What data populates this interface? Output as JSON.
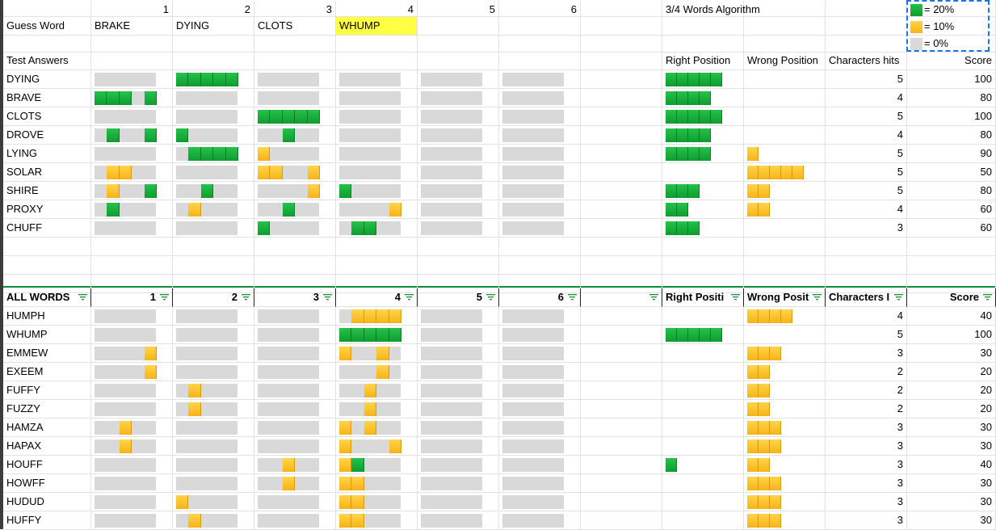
{
  "colors": {
    "green": "#1db43f",
    "yellow": "#fbbf2a",
    "gray": "#d9d9d9",
    "highlight": "#ffff44"
  },
  "header": {
    "col_numbers": [
      "1",
      "2",
      "3",
      "4",
      "5",
      "6"
    ],
    "algorithm_label": "3/4 Words Algorithm",
    "guess_label": "Guess Word",
    "guesses": [
      "BRAKE",
      "DYING",
      "CLOTS",
      "WHUMP"
    ],
    "test_answers_label": "Test Answers",
    "right_position": "Right Position",
    "wrong_position": "Wrong Position",
    "characters_hits": "Characters hits",
    "score": "Score"
  },
  "legend": [
    {
      "color": "green",
      "label": "= 20%"
    },
    {
      "color": "yellow",
      "label": "= 10%"
    },
    {
      "color": "gray",
      "label": "= 0%"
    }
  ],
  "test_rows": [
    {
      "word": "DYING",
      "marks": [
        "-----",
        "GGGGG",
        "-----",
        "-----",
        "-----",
        "-----"
      ],
      "right": 5,
      "wrong": 0,
      "hits": "5",
      "score": "100"
    },
    {
      "word": "BRAVE",
      "marks": [
        "GGG-G",
        "-----",
        "-----",
        "-----",
        "-----",
        "-----"
      ],
      "right": 4,
      "wrong": 0,
      "hits": "4",
      "score": "80"
    },
    {
      "word": "CLOTS",
      "marks": [
        "-----",
        "-----",
        "GGGGG",
        "-----",
        "-----",
        "-----"
      ],
      "right": 5,
      "wrong": 0,
      "hits": "5",
      "score": "100"
    },
    {
      "word": "DROVE",
      "marks": [
        "-G--G",
        "G----",
        "--G--",
        "-----",
        "-----",
        "-----"
      ],
      "right": 4,
      "wrong": 0,
      "hits": "4",
      "score": "80"
    },
    {
      "word": "LYING",
      "marks": [
        "-----",
        "-GGGG",
        "Y----",
        "-----",
        "-----",
        "-----"
      ],
      "right": 4,
      "wrong": 1,
      "hits": "5",
      "score": "90"
    },
    {
      "word": "SOLAR",
      "marks": [
        "-YY--",
        "-----",
        "YY--Y",
        "-----",
        "-----",
        "-----"
      ],
      "right": 0,
      "wrong": 5,
      "hits": "5",
      "score": "50"
    },
    {
      "word": "SHIRE",
      "marks": [
        "-Y--G",
        "--G--",
        "----Y",
        "G----",
        "-----",
        "-----"
      ],
      "right": 3,
      "wrong": 2,
      "hits": "5",
      "score": "80"
    },
    {
      "word": "PROXY",
      "marks": [
        "-G---",
        "-Y---",
        "--G--",
        "----Y",
        "-----",
        "-----"
      ],
      "right": 2,
      "wrong": 2,
      "hits": "4",
      "score": "60"
    },
    {
      "word": "CHUFF",
      "marks": [
        "-----",
        "-----",
        "G----",
        "-GG--",
        "-----",
        "-----"
      ],
      "right": 3,
      "wrong": 0,
      "hits": "3",
      "score": "60"
    }
  ],
  "all_header": {
    "label": "ALL WORDS",
    "cols": [
      "1",
      "2",
      "3",
      "4",
      "5",
      "6"
    ],
    "right": "Right Positi",
    "wrong": "Wrong Posit",
    "hits": "Characters I",
    "score": "Score"
  },
  "all_rows": [
    {
      "word": "HUMPH",
      "marks": [
        "-----",
        "-----",
        "-----",
        "-YYYY",
        "-----",
        "-----"
      ],
      "right": 0,
      "wrong": 4,
      "hits": "4",
      "score": "40"
    },
    {
      "word": "WHUMP",
      "marks": [
        "-----",
        "-----",
        "-----",
        "GGGGG",
        "-----",
        "-----"
      ],
      "right": 5,
      "wrong": 0,
      "hits": "5",
      "score": "100"
    },
    {
      "word": "EMMEW",
      "marks": [
        "----Y",
        "-----",
        "-----",
        "Y--Y-",
        "-----",
        "-----"
      ],
      "right": 0,
      "wrong": 3,
      "hits": "3",
      "score": "30"
    },
    {
      "word": "EXEEM",
      "marks": [
        "----Y",
        "-----",
        "-----",
        "---Y-",
        "-----",
        "-----"
      ],
      "right": 0,
      "wrong": 2,
      "hits": "2",
      "score": "20"
    },
    {
      "word": "FUFFY",
      "marks": [
        "-----",
        "-Y---",
        "-----",
        "--Y--",
        "-----",
        "-----"
      ],
      "right": 0,
      "wrong": 2,
      "hits": "2",
      "score": "20"
    },
    {
      "word": "FUZZY",
      "marks": [
        "-----",
        "-Y---",
        "-----",
        "--Y--",
        "-----",
        "-----"
      ],
      "right": 0,
      "wrong": 2,
      "hits": "2",
      "score": "20"
    },
    {
      "word": "HAMZA",
      "marks": [
        "--Y--",
        "-----",
        "-----",
        "Y-Y--",
        "-----",
        "-----"
      ],
      "right": 0,
      "wrong": 3,
      "hits": "3",
      "score": "30"
    },
    {
      "word": "HAPAX",
      "marks": [
        "--Y--",
        "-----",
        "-----",
        "Y---Y",
        "-----",
        "-----"
      ],
      "right": 0,
      "wrong": 3,
      "hits": "3",
      "score": "30"
    },
    {
      "word": "HOUFF",
      "marks": [
        "-----",
        "-----",
        "--Y--",
        "YG---",
        "-----",
        "-----"
      ],
      "right": 1,
      "wrong": 2,
      "hits": "3",
      "score": "40"
    },
    {
      "word": "HOWFF",
      "marks": [
        "-----",
        "-----",
        "--Y--",
        "YY---",
        "-----",
        "-----"
      ],
      "right": 0,
      "wrong": 3,
      "hits": "3",
      "score": "30"
    },
    {
      "word": "HUDUD",
      "marks": [
        "-----",
        "Y----",
        "-----",
        "YY---",
        "-----",
        "-----"
      ],
      "right": 0,
      "wrong": 3,
      "hits": "3",
      "score": "30"
    },
    {
      "word": "HUFFY",
      "marks": [
        "-----",
        "-Y---",
        "-----",
        "YY---",
        "-----",
        "-----"
      ],
      "right": 0,
      "wrong": 3,
      "hits": "3",
      "score": "30"
    }
  ]
}
